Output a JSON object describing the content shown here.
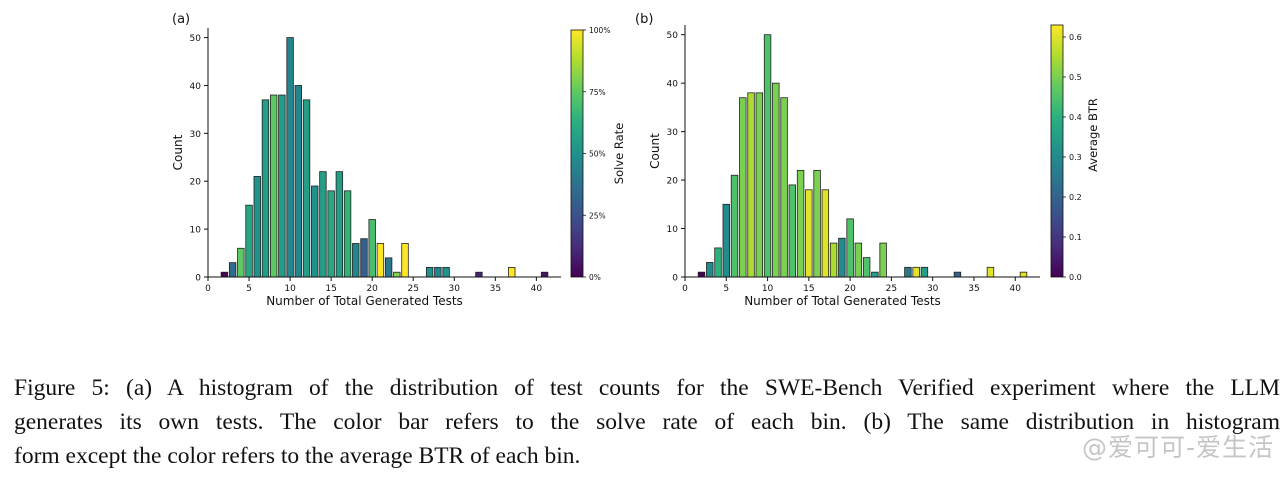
{
  "chart_data": [
    {
      "type": "bar",
      "panel_label": "(a)",
      "xlabel": "Number of Total Generated Tests",
      "ylabel": "Count",
      "xlim": [
        0,
        43
      ],
      "ylim": [
        0,
        52
      ],
      "xticks": [
        0,
        5,
        10,
        15,
        20,
        25,
        30,
        35,
        40
      ],
      "yticks": [
        0,
        10,
        20,
        30,
        40,
        50
      ],
      "colorbar": {
        "label": "Solve Rate",
        "min": 0,
        "max": 1,
        "ticks": [
          0,
          0.25,
          0.5,
          0.75,
          1
        ],
        "tick_labels": [
          "0%",
          "25%",
          "50%",
          "75%",
          "100%"
        ]
      },
      "x": [
        2,
        3,
        4,
        5,
        6,
        7,
        8,
        9,
        10,
        11,
        12,
        13,
        14,
        15,
        16,
        17,
        18,
        19,
        20,
        21,
        22,
        23,
        24,
        27,
        28,
        29,
        33,
        37,
        41
      ],
      "values": [
        1,
        3,
        6,
        15,
        21,
        37,
        38,
        38,
        50,
        40,
        37,
        19,
        22,
        18,
        22,
        18,
        7,
        8,
        12,
        7,
        4,
        1,
        7,
        2,
        2,
        2,
        1,
        2,
        1
      ],
      "color_values": [
        0.0,
        0.35,
        0.75,
        0.6,
        0.5,
        0.55,
        0.75,
        0.55,
        0.45,
        0.45,
        0.55,
        0.5,
        0.55,
        0.6,
        0.55,
        0.65,
        0.45,
        0.3,
        0.7,
        1.0,
        0.4,
        0.8,
        1.0,
        0.5,
        0.45,
        0.5,
        0.1,
        1.0,
        0.05
      ]
    },
    {
      "type": "bar",
      "panel_label": "(b)",
      "xlabel": "Number of Total Generated Tests",
      "ylabel": "Count",
      "xlim": [
        0,
        43
      ],
      "ylim": [
        0,
        52
      ],
      "xticks": [
        0,
        5,
        10,
        15,
        20,
        25,
        30,
        35,
        40
      ],
      "yticks": [
        0,
        10,
        20,
        30,
        40,
        50
      ],
      "colorbar": {
        "label": "Average BTR",
        "min": 0,
        "max": 0.63,
        "ticks": [
          0,
          0.1,
          0.2,
          0.3,
          0.4,
          0.5,
          0.6
        ],
        "tick_labels": [
          "0.0",
          "0.1",
          "0.2",
          "0.3",
          "0.4",
          "0.5",
          "0.6"
        ]
      },
      "x": [
        2,
        3,
        4,
        5,
        6,
        7,
        8,
        9,
        10,
        11,
        12,
        13,
        14,
        15,
        16,
        17,
        18,
        19,
        20,
        21,
        22,
        23,
        24,
        27,
        28,
        29,
        33,
        37,
        41
      ],
      "values": [
        1,
        3,
        6,
        15,
        21,
        37,
        38,
        38,
        50,
        40,
        37,
        19,
        22,
        18,
        22,
        18,
        7,
        8,
        12,
        7,
        4,
        1,
        7,
        2,
        2,
        2,
        1,
        2,
        1
      ],
      "color_values": [
        0.0,
        0.3,
        0.4,
        0.3,
        0.45,
        0.5,
        0.55,
        0.5,
        0.45,
        0.5,
        0.5,
        0.45,
        0.5,
        0.6,
        0.5,
        0.6,
        0.55,
        0.3,
        0.45,
        0.5,
        0.45,
        0.35,
        0.5,
        0.25,
        0.6,
        0.35,
        0.2,
        0.6,
        0.6
      ]
    }
  ],
  "caption": {
    "lines": [
      "Figure 5: (a) A histogram of the distribution of test counts for the SWE-Bench Verified experiment where the LLM",
      "generates its own tests. The color bar refers to the solve rate of each bin. (b) The same distribution in histogram",
      "form except the color refers to the average BTR of each bin."
    ]
  },
  "watermark": "@爱可可-爱生活"
}
